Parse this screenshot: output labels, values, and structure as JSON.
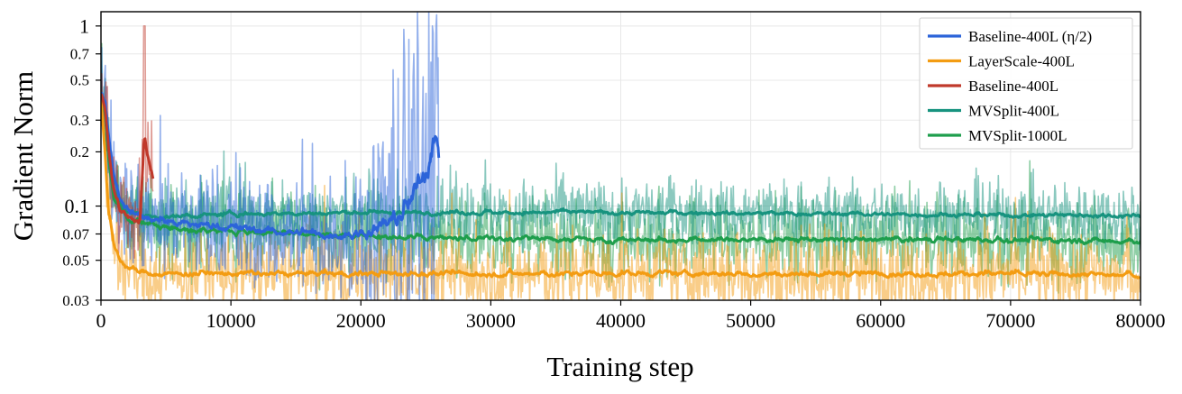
{
  "chart_data": {
    "type": "line",
    "xlabel": "Training step",
    "ylabel": "Gradient Norm",
    "xscale": "linear",
    "yscale": "log",
    "xlim": [
      0,
      80000
    ],
    "ylim": [
      0.03,
      1.2
    ],
    "xticks": [
      0,
      10000,
      20000,
      30000,
      40000,
      50000,
      60000,
      70000,
      80000
    ],
    "xtick_labels": [
      "0",
      "10000",
      "20000",
      "30000",
      "40000",
      "50000",
      "60000",
      "70000",
      "80000"
    ],
    "yticks": [
      {
        "value": 1,
        "label": "1",
        "size": "large"
      },
      {
        "value": 0.7,
        "label": "0.7",
        "size": "small"
      },
      {
        "value": 0.5,
        "label": "0.5",
        "size": "small"
      },
      {
        "value": 0.3,
        "label": "0.3",
        "size": "small"
      },
      {
        "value": 0.2,
        "label": "0.2",
        "size": "small"
      },
      {
        "value": 0.1,
        "label": "0.1",
        "size": "large"
      },
      {
        "value": 0.07,
        "label": "0.07",
        "size": "small"
      },
      {
        "value": 0.05,
        "label": "0.05",
        "size": "small"
      },
      {
        "value": 0.03,
        "label": "0.03",
        "size": "small"
      }
    ],
    "grid": true,
    "legend_position": "top-right",
    "series": [
      {
        "name": "Baseline-400L (η/2)",
        "color": "#2c64d9",
        "x": [
          0,
          300,
          600,
          1000,
          1500,
          2000,
          3000,
          4000,
          6000,
          8000,
          10000,
          12000,
          14000,
          16000,
          18000,
          19500,
          20500,
          21500,
          22500,
          23500,
          24500,
          25200,
          25700,
          26000
        ],
        "y": [
          0.42,
          0.38,
          0.25,
          0.15,
          0.11,
          0.098,
          0.088,
          0.085,
          0.08,
          0.078,
          0.076,
          0.074,
          0.072,
          0.07,
          0.069,
          0.07,
          0.072,
          0.075,
          0.08,
          0.095,
          0.13,
          0.16,
          0.25,
          0.17
        ]
      },
      {
        "name": "LayerScale-400L",
        "color": "#f39c12",
        "x": [
          0,
          300,
          600,
          1000,
          1500,
          2000,
          3000,
          5000,
          10000,
          20000,
          30000,
          40000,
          50000,
          60000,
          70000,
          80000
        ],
        "y": [
          0.4,
          0.2,
          0.09,
          0.06,
          0.05,
          0.046,
          0.043,
          0.042,
          0.042,
          0.042,
          0.042,
          0.042,
          0.042,
          0.042,
          0.042,
          0.041
        ]
      },
      {
        "name": "Baseline-400L",
        "color": "#c0392b",
        "x": [
          0,
          300,
          600,
          1000,
          1500,
          2000,
          2500,
          3000,
          3300,
          3500,
          3800,
          4000
        ],
        "y": [
          0.42,
          0.36,
          0.2,
          0.12,
          0.095,
          0.087,
          0.083,
          0.082,
          0.21,
          0.19,
          0.16,
          0.14
        ]
      },
      {
        "name": "MVSplit-400L",
        "color": "#17937f",
        "x": [
          0,
          300,
          600,
          1000,
          2000,
          4000,
          6000,
          10000,
          20000,
          30000,
          40000,
          50000,
          60000,
          70000,
          80000
        ],
        "y": [
          0.42,
          0.35,
          0.2,
          0.12,
          0.092,
          0.086,
          0.088,
          0.09,
          0.092,
          0.092,
          0.092,
          0.091,
          0.09,
          0.089,
          0.089
        ]
      },
      {
        "name": "MVSplit-1000L",
        "color": "#1e9e4c",
        "x": [
          0,
          300,
          600,
          1000,
          2000,
          4000,
          6000,
          10000,
          20000,
          30000,
          40000,
          50000,
          60000,
          70000,
          80000
        ],
        "y": [
          0.4,
          0.33,
          0.18,
          0.11,
          0.085,
          0.078,
          0.075,
          0.072,
          0.068,
          0.066,
          0.065,
          0.065,
          0.065,
          0.065,
          0.064
        ]
      }
    ]
  }
}
